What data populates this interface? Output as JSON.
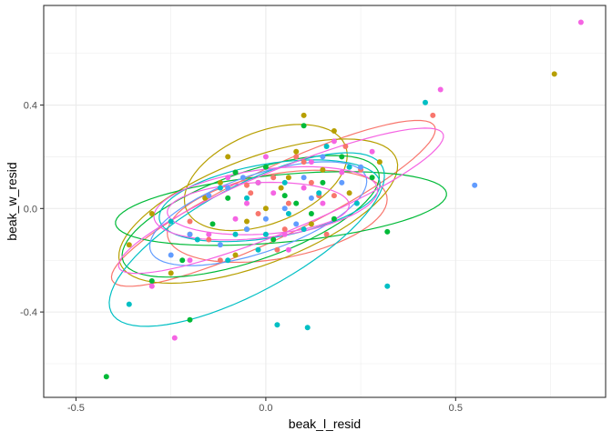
{
  "chart_data": {
    "type": "scatter",
    "title": "",
    "xlabel": "beak_l_resid",
    "ylabel": "beak_w_resid",
    "xlim": [
      -0.585,
      0.895
    ],
    "ylim": [
      -0.73,
      0.785
    ],
    "x_ticks": [
      {
        "value": -0.5,
        "label": "-0.5"
      },
      {
        "value": 0.0,
        "label": "0.0"
      },
      {
        "value": 0.5,
        "label": "0.5"
      }
    ],
    "y_ticks": [
      {
        "value": -0.4,
        "label": "-0.4"
      },
      {
        "value": 0.0,
        "label": "0.0"
      },
      {
        "value": 0.4,
        "label": "0.4"
      }
    ],
    "grid": true,
    "legend": "none",
    "overlays": "95% confidence ellipse per colour group",
    "series": [
      {
        "color": "#F8766D",
        "points": [
          [
            0.44,
            0.36
          ],
          [
            0.21,
            0.24
          ],
          [
            0.14,
            0.05
          ],
          [
            0.05,
            -0.08
          ],
          [
            -0.05,
            0.09
          ],
          [
            0.08,
            0.2
          ],
          [
            -0.12,
            -0.2
          ],
          [
            0.02,
            0.12
          ],
          [
            -0.2,
            -0.05
          ],
          [
            0.16,
            -0.1
          ],
          [
            0.1,
            0.18
          ],
          [
            -0.02,
            -0.02
          ],
          [
            0.25,
            0.15
          ],
          [
            -0.08,
            0.14
          ],
          [
            0.06,
            0.02
          ],
          [
            -0.15,
            -0.12
          ],
          [
            0.12,
            0.1
          ],
          [
            0.03,
            -0.16
          ],
          [
            0.18,
            0.05
          ],
          [
            -0.04,
            0.06
          ]
        ]
      },
      {
        "color": "#B79F00",
        "points": [
          [
            0.76,
            0.52
          ],
          [
            0.1,
            0.36
          ],
          [
            -0.3,
            -0.02
          ],
          [
            -0.36,
            -0.14
          ],
          [
            -0.1,
            0.2
          ],
          [
            0.04,
            0.08
          ],
          [
            0.15,
            0.15
          ],
          [
            -0.2,
            -0.1
          ],
          [
            0.22,
            0.06
          ],
          [
            -0.05,
            -0.05
          ],
          [
            0.08,
            0.22
          ],
          [
            -0.12,
            0.1
          ],
          [
            0.3,
            0.18
          ],
          [
            0.0,
            0.0
          ],
          [
            -0.25,
            -0.25
          ],
          [
            0.12,
            -0.06
          ],
          [
            0.18,
            0.3
          ],
          [
            -0.08,
            -0.18
          ],
          [
            0.06,
            0.12
          ],
          [
            -0.16,
            0.04
          ]
        ]
      },
      {
        "color": "#00BA38",
        "points": [
          [
            0.32,
            -0.09
          ],
          [
            -0.42,
            -0.65
          ],
          [
            -0.2,
            -0.43
          ],
          [
            0.1,
            0.32
          ],
          [
            0.02,
            -0.12
          ],
          [
            -0.1,
            0.04
          ],
          [
            0.15,
            0.1
          ],
          [
            -0.22,
            -0.2
          ],
          [
            0.2,
            0.2
          ],
          [
            0.05,
            0.05
          ],
          [
            -0.05,
            -0.08
          ],
          [
            0.12,
            -0.02
          ],
          [
            -0.3,
            -0.28
          ],
          [
            0.28,
            0.12
          ],
          [
            0.0,
            0.16
          ],
          [
            -0.14,
            -0.06
          ],
          [
            0.08,
            0.02
          ],
          [
            -0.02,
            0.1
          ],
          [
            0.18,
            -0.04
          ],
          [
            -0.08,
            0.14
          ]
        ]
      },
      {
        "color": "#00BFC4",
        "points": [
          [
            0.32,
            -0.3
          ],
          [
            0.11,
            -0.46
          ],
          [
            0.03,
            -0.45
          ],
          [
            -0.36,
            -0.37
          ],
          [
            0.42,
            0.41
          ],
          [
            -0.18,
            -0.12
          ],
          [
            0.05,
            0.1
          ],
          [
            -0.1,
            -0.2
          ],
          [
            0.16,
            0.24
          ],
          [
            -0.05,
            0.04
          ],
          [
            0.1,
            -0.08
          ],
          [
            0.22,
            0.16
          ],
          [
            -0.25,
            -0.05
          ],
          [
            0.0,
            -0.1
          ],
          [
            0.14,
            0.06
          ],
          [
            -0.12,
            0.08
          ],
          [
            0.06,
            -0.02
          ],
          [
            -0.02,
            -0.16
          ],
          [
            0.24,
            0.02
          ],
          [
            -0.08,
            -0.1
          ]
        ]
      },
      {
        "color": "#619CFF",
        "points": [
          [
            0.55,
            0.09
          ],
          [
            -0.15,
            0.05
          ],
          [
            0.1,
            0.12
          ],
          [
            -0.05,
            -0.08
          ],
          [
            0.2,
            0.1
          ],
          [
            -0.25,
            -0.18
          ],
          [
            0.05,
            0.0
          ],
          [
            0.15,
            0.2
          ],
          [
            -0.1,
            0.08
          ],
          [
            0.0,
            -0.04
          ],
          [
            -0.2,
            -0.1
          ],
          [
            0.12,
            0.04
          ],
          [
            0.25,
            0.16
          ],
          [
            -0.06,
            0.12
          ],
          [
            0.08,
            -0.06
          ],
          [
            -0.12,
            -0.14
          ]
        ]
      },
      {
        "color": "#F564E3",
        "points": [
          [
            0.83,
            0.72
          ],
          [
            0.46,
            0.46
          ],
          [
            0.0,
            0.2
          ],
          [
            -0.24,
            -0.5
          ],
          [
            -0.05,
            0.02
          ],
          [
            0.1,
            0.08
          ],
          [
            -0.15,
            -0.1
          ],
          [
            0.2,
            0.14
          ],
          [
            0.05,
            -0.1
          ],
          [
            -0.1,
            0.12
          ],
          [
            0.15,
            0.02
          ],
          [
            -0.2,
            -0.2
          ],
          [
            0.28,
            0.22
          ],
          [
            0.02,
            0.06
          ],
          [
            -0.08,
            -0.04
          ],
          [
            0.12,
            0.18
          ],
          [
            -0.3,
            -0.3
          ],
          [
            0.06,
            -0.16
          ],
          [
            0.18,
            0.26
          ],
          [
            -0.02,
            0.1
          ]
        ]
      }
    ],
    "ellipses": [
      {
        "color": "#F8766D",
        "center": [
          0.02,
          0.02
        ],
        "rx": 0.52,
        "ry": 0.12,
        "angle_deg": 36
      },
      {
        "color": "#F8766D",
        "center": [
          0.03,
          -0.03
        ],
        "rx": 0.3,
        "ry": 0.16,
        "angle_deg": 18
      },
      {
        "color": "#B79F00",
        "center": [
          -0.02,
          -0.01
        ],
        "rx": 0.42,
        "ry": 0.19,
        "angle_deg": 33
      },
      {
        "color": "#B79F00",
        "center": [
          0.0,
          0.12
        ],
        "rx": 0.25,
        "ry": 0.16,
        "angle_deg": 42
      },
      {
        "color": "#00BA38",
        "center": [
          0.04,
          0.0
        ],
        "rx": 0.44,
        "ry": 0.13,
        "angle_deg": 8
      },
      {
        "color": "#00BA38",
        "center": [
          -0.04,
          -0.03
        ],
        "rx": 0.38,
        "ry": 0.16,
        "angle_deg": 30
      },
      {
        "color": "#00BFC4",
        "center": [
          -0.05,
          -0.12
        ],
        "rx": 0.46,
        "ry": 0.18,
        "angle_deg": 42
      },
      {
        "color": "#00BFC4",
        "center": [
          0.01,
          0.03
        ],
        "rx": 0.3,
        "ry": 0.14,
        "angle_deg": 16
      },
      {
        "color": "#619CFF",
        "center": [
          -0.02,
          -0.02
        ],
        "rx": 0.32,
        "ry": 0.14,
        "angle_deg": 30
      },
      {
        "color": "#F564E3",
        "center": [
          0.04,
          0.03
        ],
        "rx": 0.5,
        "ry": 0.11,
        "angle_deg": 32
      },
      {
        "color": "#F564E3",
        "center": [
          0.0,
          0.02
        ],
        "rx": 0.3,
        "ry": 0.13,
        "angle_deg": 12
      },
      {
        "color": "#F564E3",
        "center": [
          -0.02,
          0.0
        ],
        "rx": 0.24,
        "ry": 0.1,
        "angle_deg": 4
      }
    ]
  }
}
